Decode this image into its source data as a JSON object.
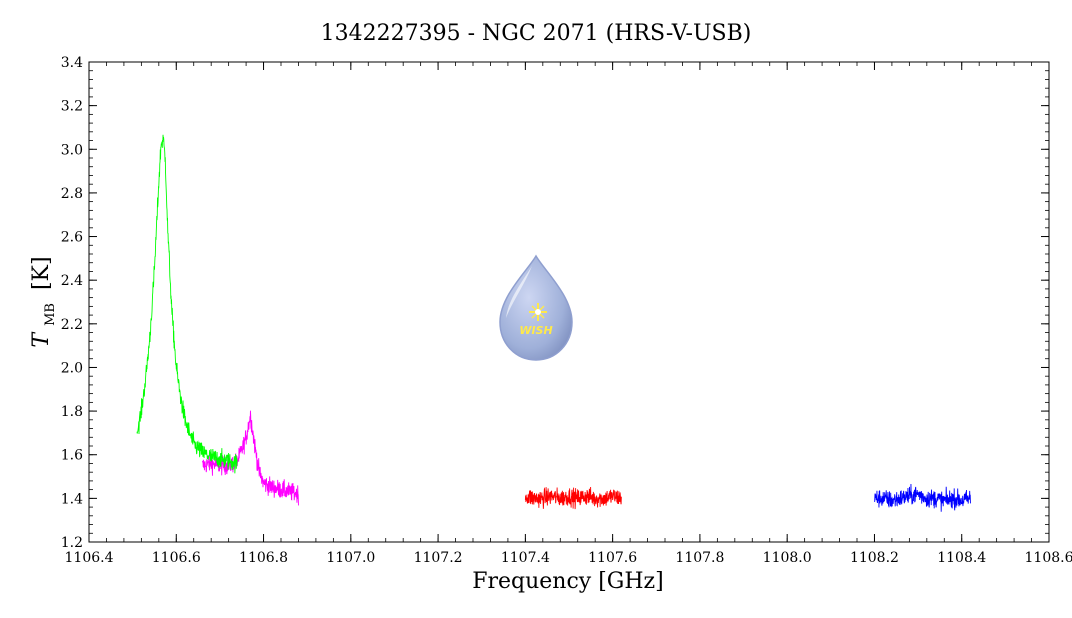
{
  "chart_data": {
    "type": "line",
    "title": "1342227395 - NGC 2071 (HRS-V-USB)",
    "xlabel": "Frequency [GHz]",
    "ylabel_main": "T",
    "ylabel_sub": "MB",
    "ylabel_unit": "[K]",
    "xlim": [
      1106.4,
      1108.6
    ],
    "ylim": [
      1.2,
      3.4
    ],
    "xticks": [
      1106.4,
      1106.6,
      1106.8,
      1107.0,
      1107.2,
      1107.4,
      1107.6,
      1107.8,
      1108.0,
      1108.2,
      1108.4,
      1108.6
    ],
    "xtick_labels": [
      "1106.4",
      "1106.6",
      "1106.8",
      "1107.0",
      "1107.2",
      "1107.4",
      "1107.6",
      "1107.8",
      "1108.0",
      "1108.2",
      "1108.4",
      "1108.6"
    ],
    "yticks": [
      1.2,
      1.4,
      1.6,
      1.8,
      2.0,
      2.2,
      2.4,
      2.6,
      2.8,
      3.0,
      3.2,
      3.4
    ],
    "ytick_labels": [
      "1.2",
      "1.4",
      "1.6",
      "1.8",
      "2.0",
      "2.2",
      "2.4",
      "2.6",
      "2.8",
      "3.0",
      "3.2",
      "3.4"
    ],
    "grid": false,
    "series": [
      {
        "color": "#ff00ff",
        "x": [
          1106.66,
          1106.68,
          1106.7,
          1106.72,
          1106.74,
          1106.75,
          1106.76,
          1106.77,
          1106.78,
          1106.79,
          1106.8,
          1106.82,
          1106.84,
          1106.86,
          1106.88
        ],
        "y": [
          1.55,
          1.56,
          1.55,
          1.55,
          1.57,
          1.62,
          1.68,
          1.78,
          1.64,
          1.52,
          1.47,
          1.45,
          1.44,
          1.43,
          1.42
        ]
      },
      {
        "color": "#00ff00",
        "x": [
          1106.51,
          1106.52,
          1106.53,
          1106.54,
          1106.55,
          1106.56,
          1106.565,
          1106.57,
          1106.575,
          1106.58,
          1106.59,
          1106.6,
          1106.61,
          1106.62,
          1106.63,
          1106.64,
          1106.66,
          1106.68,
          1106.7,
          1106.72,
          1106.74
        ],
        "y": [
          1.7,
          1.8,
          1.95,
          2.15,
          2.45,
          2.85,
          3.02,
          3.05,
          2.95,
          2.65,
          2.25,
          2.0,
          1.86,
          1.76,
          1.7,
          1.65,
          1.61,
          1.59,
          1.58,
          1.57,
          1.56
        ]
      },
      {
        "color": "#ff0000",
        "x": [
          1107.4,
          1107.42,
          1107.44,
          1107.46,
          1107.48,
          1107.5,
          1107.52,
          1107.54,
          1107.56,
          1107.58,
          1107.6,
          1107.62
        ],
        "y": [
          1.41,
          1.4,
          1.4,
          1.41,
          1.4,
          1.41,
          1.4,
          1.41,
          1.4,
          1.4,
          1.41,
          1.4
        ]
      },
      {
        "color": "#0000ff",
        "x": [
          1108.2,
          1108.22,
          1108.24,
          1108.26,
          1108.28,
          1108.3,
          1108.32,
          1108.34,
          1108.36,
          1108.38,
          1108.4,
          1108.42
        ],
        "y": [
          1.4,
          1.4,
          1.39,
          1.4,
          1.41,
          1.42,
          1.4,
          1.4,
          1.39,
          1.4,
          1.39,
          1.4
        ]
      }
    ],
    "logo": {
      "text": "WISH",
      "fill_color": "#9fb0d9",
      "star_color": "#ffe94a"
    }
  }
}
